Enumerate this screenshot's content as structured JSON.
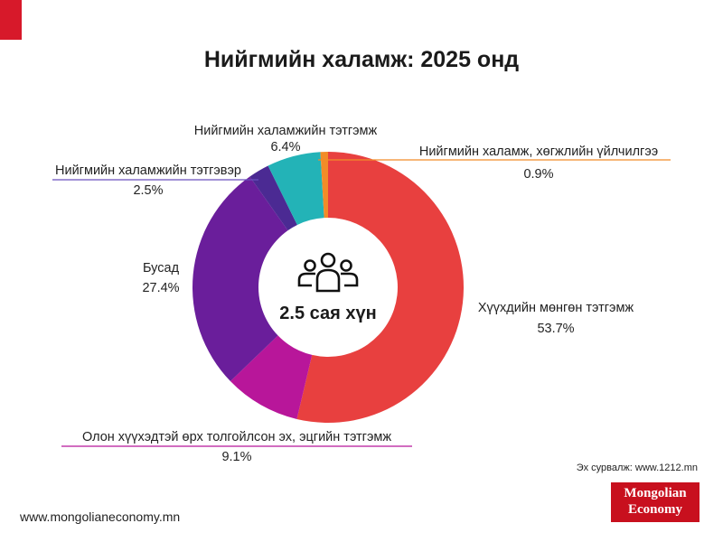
{
  "page": {
    "title": "Нийгмийн халамж: 2025 онд",
    "source": "Эх сурвалж: www.1212.mn",
    "website": "www.mongolianeconomy.mn",
    "logo_line1": "Mongolian",
    "logo_line2": "Economy",
    "center_label": "2.5 сая хүн",
    "center_icon": "people-group-icon"
  },
  "chart_data": {
    "type": "pie",
    "donut": true,
    "categories": [
      "Хүүхдийн мөнгөн тэтгэмж",
      "Олон хүүхэдтэй өрх толгойлсон эх, эцгийн тэтгэмж",
      "Бусад",
      "Нийгмийн халамжийн тэтгэвэр",
      "Нийгмийн халамжийн тэтгэмж",
      "Нийгмийн халамж, хөгжлийн үйлчилгээ"
    ],
    "values": [
      53.7,
      9.1,
      27.4,
      2.5,
      6.4,
      0.9
    ],
    "value_labels": [
      "53.7%",
      "9.1%",
      "27.4%",
      "2.5%",
      "6.4%",
      "0.9%"
    ],
    "colors": [
      "#e8403f",
      "#b8169a",
      "#6a1e9b",
      "#4b2a93",
      "#23b3b7",
      "#f28c28"
    ],
    "start": "12 o'clock",
    "direction": "clockwise"
  }
}
